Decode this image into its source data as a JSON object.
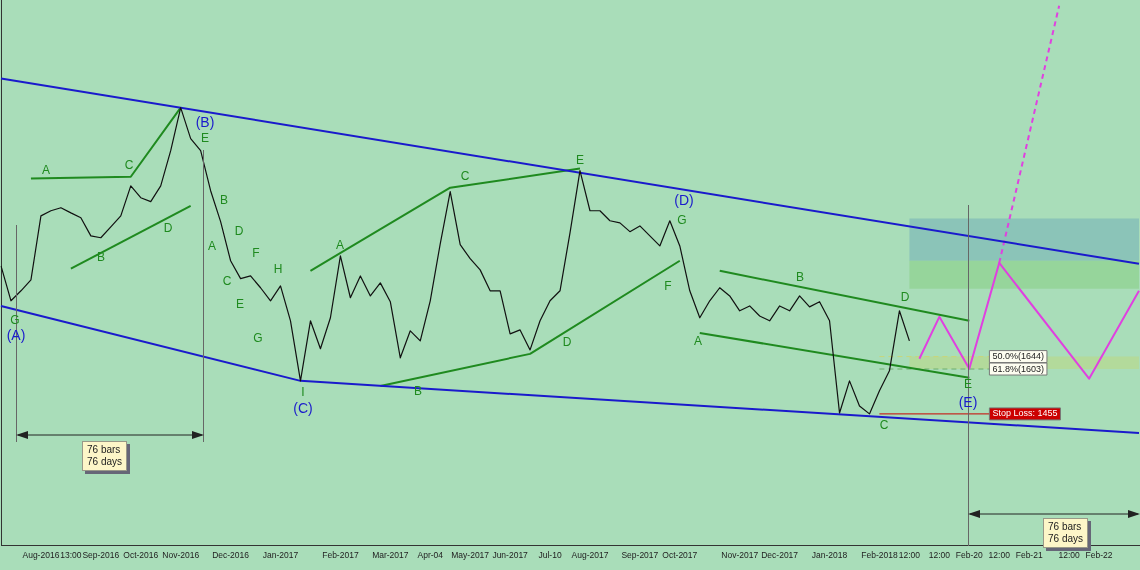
{
  "chart_data": {
    "type": "line",
    "marker": "none",
    "tick_labels": "x",
    "ylim": [
      1020,
      2820
    ],
    "categories": [
      null,
      null,
      null,
      null,
      "Aug-2016",
      null,
      null,
      "13:00",
      null,
      null,
      "Sep-2016",
      null,
      null,
      null,
      "Oct-2016",
      null,
      null,
      null,
      "Nov-2016",
      null,
      null,
      null,
      null,
      "Dec-2016",
      null,
      null,
      null,
      null,
      "Jan-2017",
      null,
      null,
      null,
      null,
      null,
      "Feb-2017",
      null,
      null,
      null,
      null,
      "Mar-2017",
      null,
      null,
      null,
      "Apr-04",
      null,
      null,
      null,
      "May-2017",
      null,
      null,
      null,
      "Jun-2017",
      null,
      null,
      null,
      "Jul-10",
      null,
      null,
      null,
      "Aug-2017",
      null,
      null,
      null,
      null,
      "Sep-2017",
      null,
      null,
      null,
      "Oct-2017",
      null,
      null,
      null,
      null,
      null,
      "Nov-2017",
      null,
      null,
      null,
      "Dec-2017",
      null,
      null,
      null,
      null,
      "Jan-2018",
      null,
      null,
      null,
      null,
      "Feb-2018",
      null,
      null,
      "12:00",
      null,
      null,
      "12:00",
      null,
      null,
      "Feb-20",
      null,
      null,
      "12:00",
      null,
      null,
      "Feb-21",
      null,
      null,
      null,
      "12:00",
      null,
      null,
      "Feb-22",
      null,
      null,
      null,
      null
    ],
    "series": [
      {
        "color": "#111111",
        "values": [
          1943,
          1828,
          1861,
          1897,
          2108,
          2125,
          2135,
          2118,
          2102,
          2042,
          2036,
          2072,
          2108,
          2207,
          2168,
          2155,
          2207,
          2323,
          2465,
          2363,
          2323,
          2191,
          2089,
          1960,
          1901,
          1910,
          1871,
          1828,
          1877,
          1762,
          1564,
          1762,
          1670,
          1772,
          1976,
          1838,
          1910,
          1844,
          1887,
          1825,
          1640,
          1729,
          1696,
          1828,
          2016,
          2188,
          2013,
          1967,
          1930,
          1861,
          1861,
          1719,
          1732,
          1666,
          1762,
          1828,
          1861,
          2052,
          2257,
          2125,
          2125,
          2092,
          2085,
          2056,
          2075,
          2042,
          2009,
          2092,
          2009,
          1861,
          1772,
          1828,
          1871,
          1844,
          1795,
          1811,
          1778,
          1762,
          1811,
          1795,
          1844,
          1808,
          1825,
          1762,
          1458,
          1564,
          1481,
          1455,
          1531,
          1597,
          1795,
          1696,
          null,
          null,
          null,
          null,
          null,
          null,
          null,
          null,
          null,
          null,
          null,
          null,
          null,
          null,
          null,
          null,
          null,
          null,
          null,
          null,
          null,
          null,
          null
        ]
      },
      {
        "color": "#1a1acc",
        "values": [
          2561,
          null,
          null,
          null,
          null,
          null,
          null,
          null,
          null,
          null,
          null,
          null,
          null,
          null,
          null,
          null,
          null,
          null,
          null,
          null,
          null,
          null,
          null,
          null,
          null,
          null,
          null,
          null,
          null,
          null,
          null,
          null,
          null,
          null,
          null,
          null,
          null,
          null,
          null,
          null,
          null,
          null,
          null,
          null,
          null,
          null,
          null,
          null,
          null,
          null,
          null,
          null,
          null,
          null,
          null,
          null,
          null,
          null,
          null,
          null,
          null,
          null,
          null,
          null,
          null,
          null,
          null,
          null,
          null,
          null,
          null,
          null,
          null,
          null,
          null,
          null,
          null,
          null,
          null,
          null,
          null,
          null,
          null,
          null,
          null,
          null,
          null,
          null,
          null,
          null,
          null,
          null,
          null,
          null,
          null,
          null,
          null,
          null,
          null,
          null,
          null,
          null,
          null,
          null,
          null,
          null,
          null,
          null,
          null,
          null,
          null,
          null,
          null,
          null,
          1950
        ]
      },
      {
        "color": "#1a1acc",
        "values": [
          1811,
          null,
          null,
          null,
          null,
          null,
          null,
          null,
          null,
          null,
          null,
          null,
          null,
          null,
          null,
          null,
          null,
          null,
          null,
          null,
          null,
          null,
          null,
          null,
          null,
          null,
          null,
          null,
          null,
          null,
          1564,
          null,
          null,
          null,
          null,
          null,
          null,
          null,
          null,
          null,
          null,
          null,
          null,
          null,
          null,
          null,
          null,
          null,
          null,
          null,
          null,
          null,
          null,
          null,
          null,
          null,
          null,
          null,
          null,
          null,
          null,
          null,
          null,
          null,
          null,
          null,
          null,
          null,
          null,
          null,
          null,
          null,
          null,
          null,
          null,
          null,
          null,
          null,
          null,
          null,
          null,
          null,
          null,
          null,
          null,
          null,
          null,
          null,
          null,
          null,
          null,
          null,
          null,
          null,
          null,
          null,
          null,
          null,
          null,
          null,
          null,
          null,
          null,
          null,
          null,
          null,
          null,
          null,
          null,
          null,
          null,
          null,
          null,
          null,
          1392
        ]
      },
      {
        "color": "#1f8a1f",
        "values": [
          null,
          null,
          null,
          2231,
          null,
          null,
          null,
          null,
          null,
          null,
          null,
          null,
          null,
          2237,
          null,
          null,
          null,
          null,
          2465,
          null,
          null,
          null,
          null,
          null,
          null,
          null,
          null,
          null,
          null,
          null,
          null,
          null,
          null,
          null,
          null,
          null,
          null,
          null,
          null,
          null,
          null,
          null,
          null,
          null,
          null,
          null,
          null,
          null,
          null,
          null,
          null,
          null,
          null,
          null,
          null,
          null,
          null,
          null,
          null,
          null,
          null,
          null,
          null,
          null,
          null,
          null,
          null,
          null,
          null,
          null,
          null,
          null,
          null,
          null,
          null,
          null,
          null,
          null,
          null,
          null,
          null,
          null,
          null,
          null,
          null,
          null,
          null,
          null,
          null,
          null,
          null,
          null,
          null,
          null,
          null,
          null,
          null,
          null,
          null,
          null,
          null,
          null,
          null,
          null,
          null,
          null,
          null,
          null,
          null,
          null,
          null,
          null,
          null,
          null,
          null
        ]
      },
      {
        "color": "#1f8a1f",
        "values": [
          null,
          null,
          null,
          null,
          null,
          null,
          null,
          1934,
          null,
          null,
          null,
          null,
          null,
          null,
          null,
          null,
          null,
          null,
          null,
          2141,
          null,
          null,
          null,
          null,
          null,
          null,
          null,
          null,
          null,
          null,
          null,
          null,
          null,
          null,
          null,
          null,
          null,
          null,
          null,
          null,
          null,
          null,
          null,
          null,
          null,
          null,
          null,
          null,
          null,
          null,
          null,
          null,
          null,
          null,
          null,
          null,
          null,
          null,
          null,
          null,
          null,
          null,
          null,
          null,
          null,
          null,
          null,
          null,
          null,
          null,
          null,
          null,
          null,
          null,
          null,
          null,
          null,
          null,
          null,
          null,
          null,
          null,
          null,
          null,
          null,
          null,
          null,
          null,
          null,
          null,
          null,
          null,
          null,
          null,
          null,
          null,
          null,
          null,
          null,
          null,
          null,
          null,
          null,
          null,
          null,
          null,
          null,
          null,
          null,
          null,
          null,
          null,
          null,
          null,
          null
        ]
      },
      {
        "color": "#1f8a1f",
        "values": [
          null,
          null,
          null,
          null,
          null,
          null,
          null,
          null,
          null,
          null,
          null,
          null,
          null,
          null,
          null,
          null,
          null,
          null,
          null,
          null,
          null,
          null,
          null,
          null,
          null,
          null,
          null,
          null,
          null,
          null,
          null,
          1927,
          null,
          null,
          null,
          null,
          null,
          null,
          null,
          null,
          null,
          null,
          null,
          null,
          null,
          2201,
          null,
          null,
          null,
          null,
          null,
          null,
          null,
          null,
          null,
          null,
          null,
          null,
          2264,
          null,
          null,
          null,
          null,
          null,
          null,
          null,
          null,
          null,
          null,
          null,
          null,
          null,
          null,
          null,
          null,
          null,
          null,
          null,
          null,
          null,
          null,
          null,
          null,
          null,
          null,
          null,
          null,
          null,
          null,
          null,
          null,
          null,
          null,
          null,
          null,
          null,
          null,
          null,
          null,
          null,
          null,
          null,
          null,
          null,
          null,
          null,
          null,
          null,
          null,
          null,
          null,
          null,
          null,
          null,
          null
        ]
      },
      {
        "color": "#1f8a1f",
        "values": [
          null,
          null,
          null,
          null,
          null,
          null,
          null,
          null,
          null,
          null,
          null,
          null,
          null,
          null,
          null,
          null,
          null,
          null,
          null,
          null,
          null,
          null,
          null,
          null,
          null,
          null,
          null,
          null,
          null,
          null,
          null,
          null,
          null,
          null,
          null,
          null,
          null,
          null,
          1547,
          null,
          null,
          null,
          null,
          null,
          null,
          null,
          null,
          null,
          null,
          null,
          null,
          null,
          null,
          1653,
          null,
          null,
          null,
          null,
          null,
          null,
          null,
          null,
          null,
          null,
          null,
          null,
          null,
          null,
          1960,
          null,
          null,
          null,
          null,
          null,
          null,
          null,
          null,
          null,
          null,
          null,
          null,
          null,
          null,
          null,
          null,
          null,
          null,
          null,
          null,
          null,
          null,
          null,
          null,
          null,
          null,
          null,
          null,
          null,
          null,
          null,
          null,
          null,
          null,
          null,
          null,
          null,
          null,
          null,
          null,
          null,
          null,
          null,
          null,
          null,
          null
        ]
      },
      {
        "color": "#1f8a1f",
        "values": [
          null,
          null,
          null,
          null,
          null,
          null,
          null,
          null,
          null,
          null,
          null,
          null,
          null,
          null,
          null,
          null,
          null,
          null,
          null,
          null,
          null,
          null,
          null,
          null,
          null,
          null,
          null,
          null,
          null,
          null,
          null,
          null,
          null,
          null,
          null,
          null,
          null,
          null,
          null,
          null,
          null,
          null,
          null,
          null,
          null,
          null,
          null,
          null,
          null,
          null,
          null,
          null,
          null,
          null,
          null,
          null,
          null,
          null,
          null,
          null,
          null,
          null,
          null,
          null,
          null,
          null,
          null,
          null,
          null,
          null,
          null,
          null,
          1927,
          null,
          null,
          null,
          null,
          null,
          null,
          null,
          null,
          null,
          null,
          null,
          null,
          null,
          null,
          null,
          null,
          null,
          null,
          null,
          null,
          null,
          null,
          null,
          null,
          1762,
          null,
          null,
          null,
          null,
          null,
          null,
          null,
          null,
          null,
          null,
          null,
          null,
          null,
          null,
          null,
          null,
          null
        ]
      },
      {
        "color": "#1f8a1f",
        "values": [
          null,
          null,
          null,
          null,
          null,
          null,
          null,
          null,
          null,
          null,
          null,
          null,
          null,
          null,
          null,
          null,
          null,
          null,
          null,
          null,
          null,
          null,
          null,
          null,
          null,
          null,
          null,
          null,
          null,
          null,
          null,
          null,
          null,
          null,
          null,
          null,
          null,
          null,
          null,
          null,
          null,
          null,
          null,
          null,
          null,
          null,
          null,
          null,
          null,
          null,
          null,
          null,
          null,
          null,
          null,
          null,
          null,
          null,
          null,
          null,
          null,
          null,
          null,
          null,
          null,
          null,
          null,
          null,
          null,
          null,
          1722,
          null,
          null,
          null,
          null,
          null,
          null,
          null,
          null,
          null,
          null,
          null,
          null,
          null,
          null,
          null,
          null,
          null,
          null,
          null,
          null,
          null,
          null,
          null,
          null,
          null,
          null,
          1574,
          null,
          null,
          null,
          null,
          null,
          null,
          null,
          null,
          null,
          null,
          null,
          null,
          null,
          null,
          null,
          null,
          null
        ]
      },
      {
        "color": "#e040e0",
        "values": [
          null,
          null,
          null,
          null,
          null,
          null,
          null,
          null,
          null,
          null,
          null,
          null,
          null,
          null,
          null,
          null,
          null,
          null,
          null,
          null,
          null,
          null,
          null,
          null,
          null,
          null,
          null,
          null,
          null,
          null,
          null,
          null,
          null,
          null,
          null,
          null,
          null,
          null,
          null,
          null,
          null,
          null,
          null,
          null,
          null,
          null,
          null,
          null,
          null,
          null,
          null,
          null,
          null,
          null,
          null,
          null,
          null,
          null,
          null,
          null,
          null,
          null,
          null,
          null,
          null,
          null,
          null,
          null,
          null,
          null,
          null,
          null,
          null,
          null,
          null,
          null,
          null,
          null,
          null,
          null,
          null,
          null,
          null,
          null,
          null,
          null,
          null,
          null,
          null,
          null,
          null,
          null,
          1637,
          null,
          1775,
          null,
          null,
          1604,
          null,
          null,
          1953,
          null,
          null,
          null,
          null,
          null,
          null,
          null,
          null,
          1571,
          null,
          null,
          null,
          null,
          1861
        ]
      },
      {
        "color": "#e040e0",
        "line_style": "dashed",
        "values": [
          null,
          null,
          null,
          null,
          null,
          null,
          null,
          null,
          null,
          null,
          null,
          null,
          null,
          null,
          null,
          null,
          null,
          null,
          null,
          null,
          null,
          null,
          null,
          null,
          null,
          null,
          null,
          null,
          null,
          null,
          null,
          null,
          null,
          null,
          null,
          null,
          null,
          null,
          null,
          null,
          null,
          null,
          null,
          null,
          null,
          null,
          null,
          null,
          null,
          null,
          null,
          null,
          null,
          null,
          null,
          null,
          null,
          null,
          null,
          null,
          null,
          null,
          null,
          null,
          null,
          null,
          null,
          null,
          null,
          null,
          null,
          null,
          null,
          null,
          null,
          null,
          null,
          null,
          null,
          null,
          null,
          null,
          null,
          null,
          null,
          null,
          null,
          null,
          null,
          null,
          null,
          null,
          null,
          null,
          null,
          null,
          null,
          null,
          null,
          null,
          1953,
          null,
          null,
          null,
          null,
          null,
          2801,
          null,
          null,
          null,
          null,
          null,
          null,
          null,
          null
        ]
      }
    ],
    "ref_lines": [
      {
        "axis": "y",
        "value": 1644,
        "label": "50.0%(1644)",
        "color": "#c8d67a",
        "line_style": "dashed"
      },
      {
        "axis": "y",
        "value": 1603,
        "label": "61.8%(1603)",
        "color": "#6fae6f",
        "line_style": "dashed"
      },
      {
        "axis": "y",
        "value": 1455,
        "label": "Stop Loss: 1455",
        "color": "#cc0000"
      }
    ],
    "bands": [
      {
        "axis": "y",
        "from": 1960,
        "to": 2099,
        "color": "#7fb9b8"
      },
      {
        "axis": "y",
        "from": 1868,
        "to": 1960,
        "color": "#8fd18f"
      },
      {
        "axis": "y",
        "from": 1603,
        "to": 1644,
        "color": "#b8d88e"
      }
    ],
    "annotations": [
      "76 bars\n76 days",
      "76 bars\n76 days",
      "G",
      "(A)",
      "A",
      "B",
      "C",
      "D",
      "(B)",
      "E",
      "B",
      "A",
      "D",
      "C",
      "F",
      "E",
      "H",
      "G",
      "I",
      "(C)",
      "A",
      "C",
      "B",
      "E",
      "D",
      "(D)",
      "G",
      "F",
      "A",
      "B",
      "D",
      "C",
      "E",
      "(E)"
    ]
  }
}
